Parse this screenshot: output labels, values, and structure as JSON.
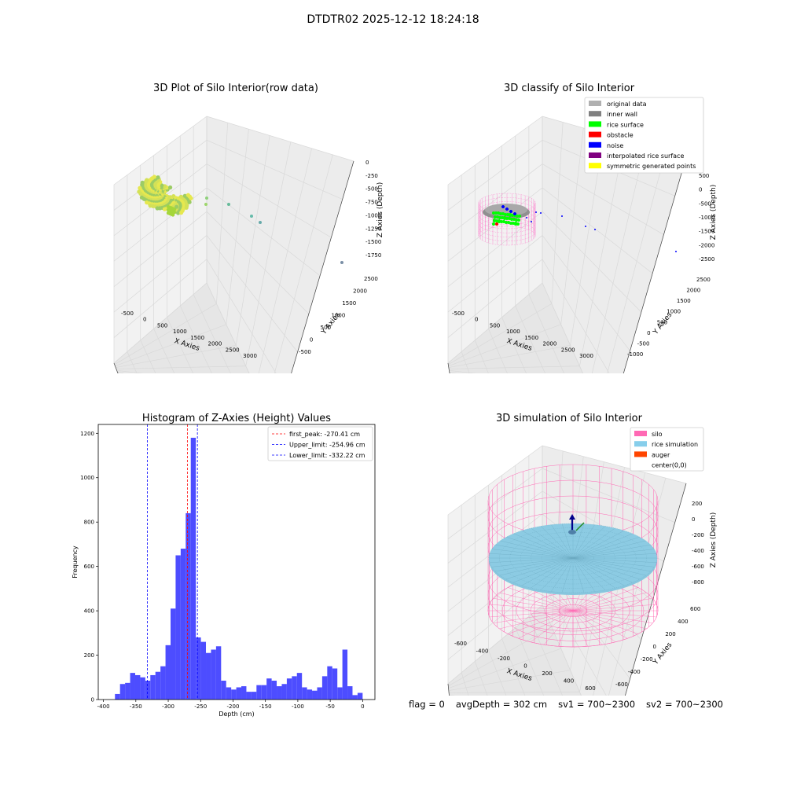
{
  "figure": {
    "suptitle": "DTDTR02 2025-12-12 18:24:18"
  },
  "chart_data": [
    {
      "type": "scatter",
      "subtype": "3d-scatter",
      "title": "3D Plot of Silo Interior(row data)",
      "xlabel": "X Axies",
      "ylabel": "Y Axies",
      "zlabel": "Z Axies (Depth)",
      "x_ticks": [
        "-500",
        "0",
        "500",
        "1000",
        "1500",
        "2000",
        "2500",
        "3000"
      ],
      "y_ticks": [
        "-500",
        "0",
        "500",
        "1000",
        "1500",
        "2000",
        "2500"
      ],
      "z_ticks": [
        "0",
        "-250",
        "-500",
        "-750",
        "-1000",
        "-1250",
        "-1500",
        "-1750"
      ],
      "series": [
        {
          "color": "#9acd32",
          "points": [
            {
              "x": 650,
              "y": 500,
              "z": -300
            },
            {
              "x": 950,
              "y": 600,
              "z": -450
            },
            {
              "x": 1350,
              "y": 700,
              "z": -650
            },
            {
              "x": 1550,
              "y": 750,
              "z": -800
            },
            {
              "x": 3000,
              "y": 600,
              "z": -1900
            }
          ]
        }
      ]
    },
    {
      "type": "scatter",
      "subtype": "3d-scatter",
      "title": "3D classify of Silo Interior",
      "xlabel": "X Axies",
      "ylabel": "Y Axies",
      "zlabel": "Z Axies (Depth)",
      "x_ticks": [
        "-500",
        "0",
        "500",
        "1000",
        "1500",
        "2000",
        "2500",
        "3000"
      ],
      "y_ticks": [
        "-1000",
        "-500",
        "0",
        "500",
        "1000",
        "1500",
        "2000",
        "2500"
      ],
      "z_ticks": [
        "500",
        "0",
        "-500",
        "-1000",
        "-1500",
        "-2000",
        "-2500"
      ],
      "legend": {
        "position": "top-right",
        "entries": [
          {
            "label": "original data",
            "color": "#b0b0b0"
          },
          {
            "label": "inner wall",
            "color": "#808080"
          },
          {
            "label": "rice surface",
            "color": "#00ff00"
          },
          {
            "label": "obstacle",
            "color": "#ff0000"
          },
          {
            "label": "noise",
            "color": "#0000ff"
          },
          {
            "label": "interpolated rice surface",
            "color": "#800080"
          },
          {
            "label": "symmetric generated points",
            "color": "#ffff00"
          }
        ]
      }
    },
    {
      "type": "bar",
      "subtype": "histogram",
      "title": "Histogram of Z-Axies (Height) Values",
      "xlabel": "Depth (cm)",
      "ylabel": "Frequency",
      "xlim": [
        -400,
        0
      ],
      "ylim": [
        0,
        1200
      ],
      "x_ticks": [
        -400,
        -350,
        -300,
        -250,
        -200,
        -150,
        -100,
        -50,
        0
      ],
      "y_ticks": [
        0,
        200,
        400,
        600,
        800,
        1000,
        1200
      ],
      "bar_color": "#4d4dff",
      "bin_width": 7.8,
      "bin_starts": [
        -390,
        -382.2,
        -374.4,
        -366.6,
        -358.8,
        -351,
        -343.2,
        -335.4,
        -327.6,
        -319.8,
        -312,
        -304.2,
        -296.4,
        -288.6,
        -280.8,
        -273,
        -265.2,
        -257.4,
        -249.6,
        -241.8,
        -234,
        -226.2,
        -218.4,
        -210.6,
        -202.8,
        -195,
        -187.2,
        -179.4,
        -171.6,
        -163.8,
        -156,
        -148.2,
        -140.4,
        -132.6,
        -124.8,
        -117,
        -109.2,
        -101.4,
        -93.6,
        -85.8,
        -78,
        -70.2,
        -62.4,
        -54.6,
        -46.8,
        -39,
        -31.2,
        -23.4,
        -15.6,
        -7.8
      ],
      "values": [
        0,
        25,
        70,
        75,
        120,
        110,
        100,
        85,
        110,
        125,
        150,
        245,
        410,
        650,
        680,
        840,
        1180,
        280,
        260,
        210,
        225,
        240,
        85,
        55,
        45,
        55,
        60,
        35,
        35,
        65,
        65,
        95,
        85,
        60,
        70,
        95,
        105,
        120,
        55,
        45,
        40,
        55,
        105,
        150,
        140,
        55,
        225,
        60,
        20,
        30
      ],
      "vlines": [
        {
          "label": "first_peak: -270.41 cm",
          "x": -270.41,
          "color": "#ff0000"
        },
        {
          "label": "Upper_limit: -254.96 cm",
          "x": -254.96,
          "color": "#0000ff"
        },
        {
          "label": "Lower_limit: -332.22 cm",
          "x": -332.22,
          "color": "#0000ff"
        }
      ],
      "legend_position": "top-right"
    },
    {
      "type": "scatter",
      "subtype": "3d-surface",
      "title": "3D simulation of Silo Interior",
      "xlabel": "X Axies",
      "ylabel": "Y Axies",
      "zlabel": "Z Axies (Depth)",
      "x_ticks": [
        "-600",
        "-400",
        "-200",
        "0",
        "200",
        "400",
        "600"
      ],
      "y_ticks": [
        "-600",
        "-400",
        "-200",
        "0",
        "200",
        "400",
        "600"
      ],
      "z_ticks": [
        "200",
        "0",
        "-200",
        "-400",
        "-600",
        "-800"
      ],
      "legend": {
        "position": "top-right",
        "entries": [
          {
            "label": "silo",
            "color": "#ff69b4"
          },
          {
            "label": "rice simulation",
            "color": "#87ceeb"
          },
          {
            "label": "auger",
            "color": "#ff4500"
          },
          {
            "label": "center(0,0)",
            "color": "#ffffff"
          }
        ]
      }
    }
  ],
  "footer": {
    "flag": "flag = 0",
    "avg_depth": "avgDepth = 302 cm",
    "sv1": "sv1 = 700~2300",
    "sv2": "sv2 = 700~2300"
  }
}
